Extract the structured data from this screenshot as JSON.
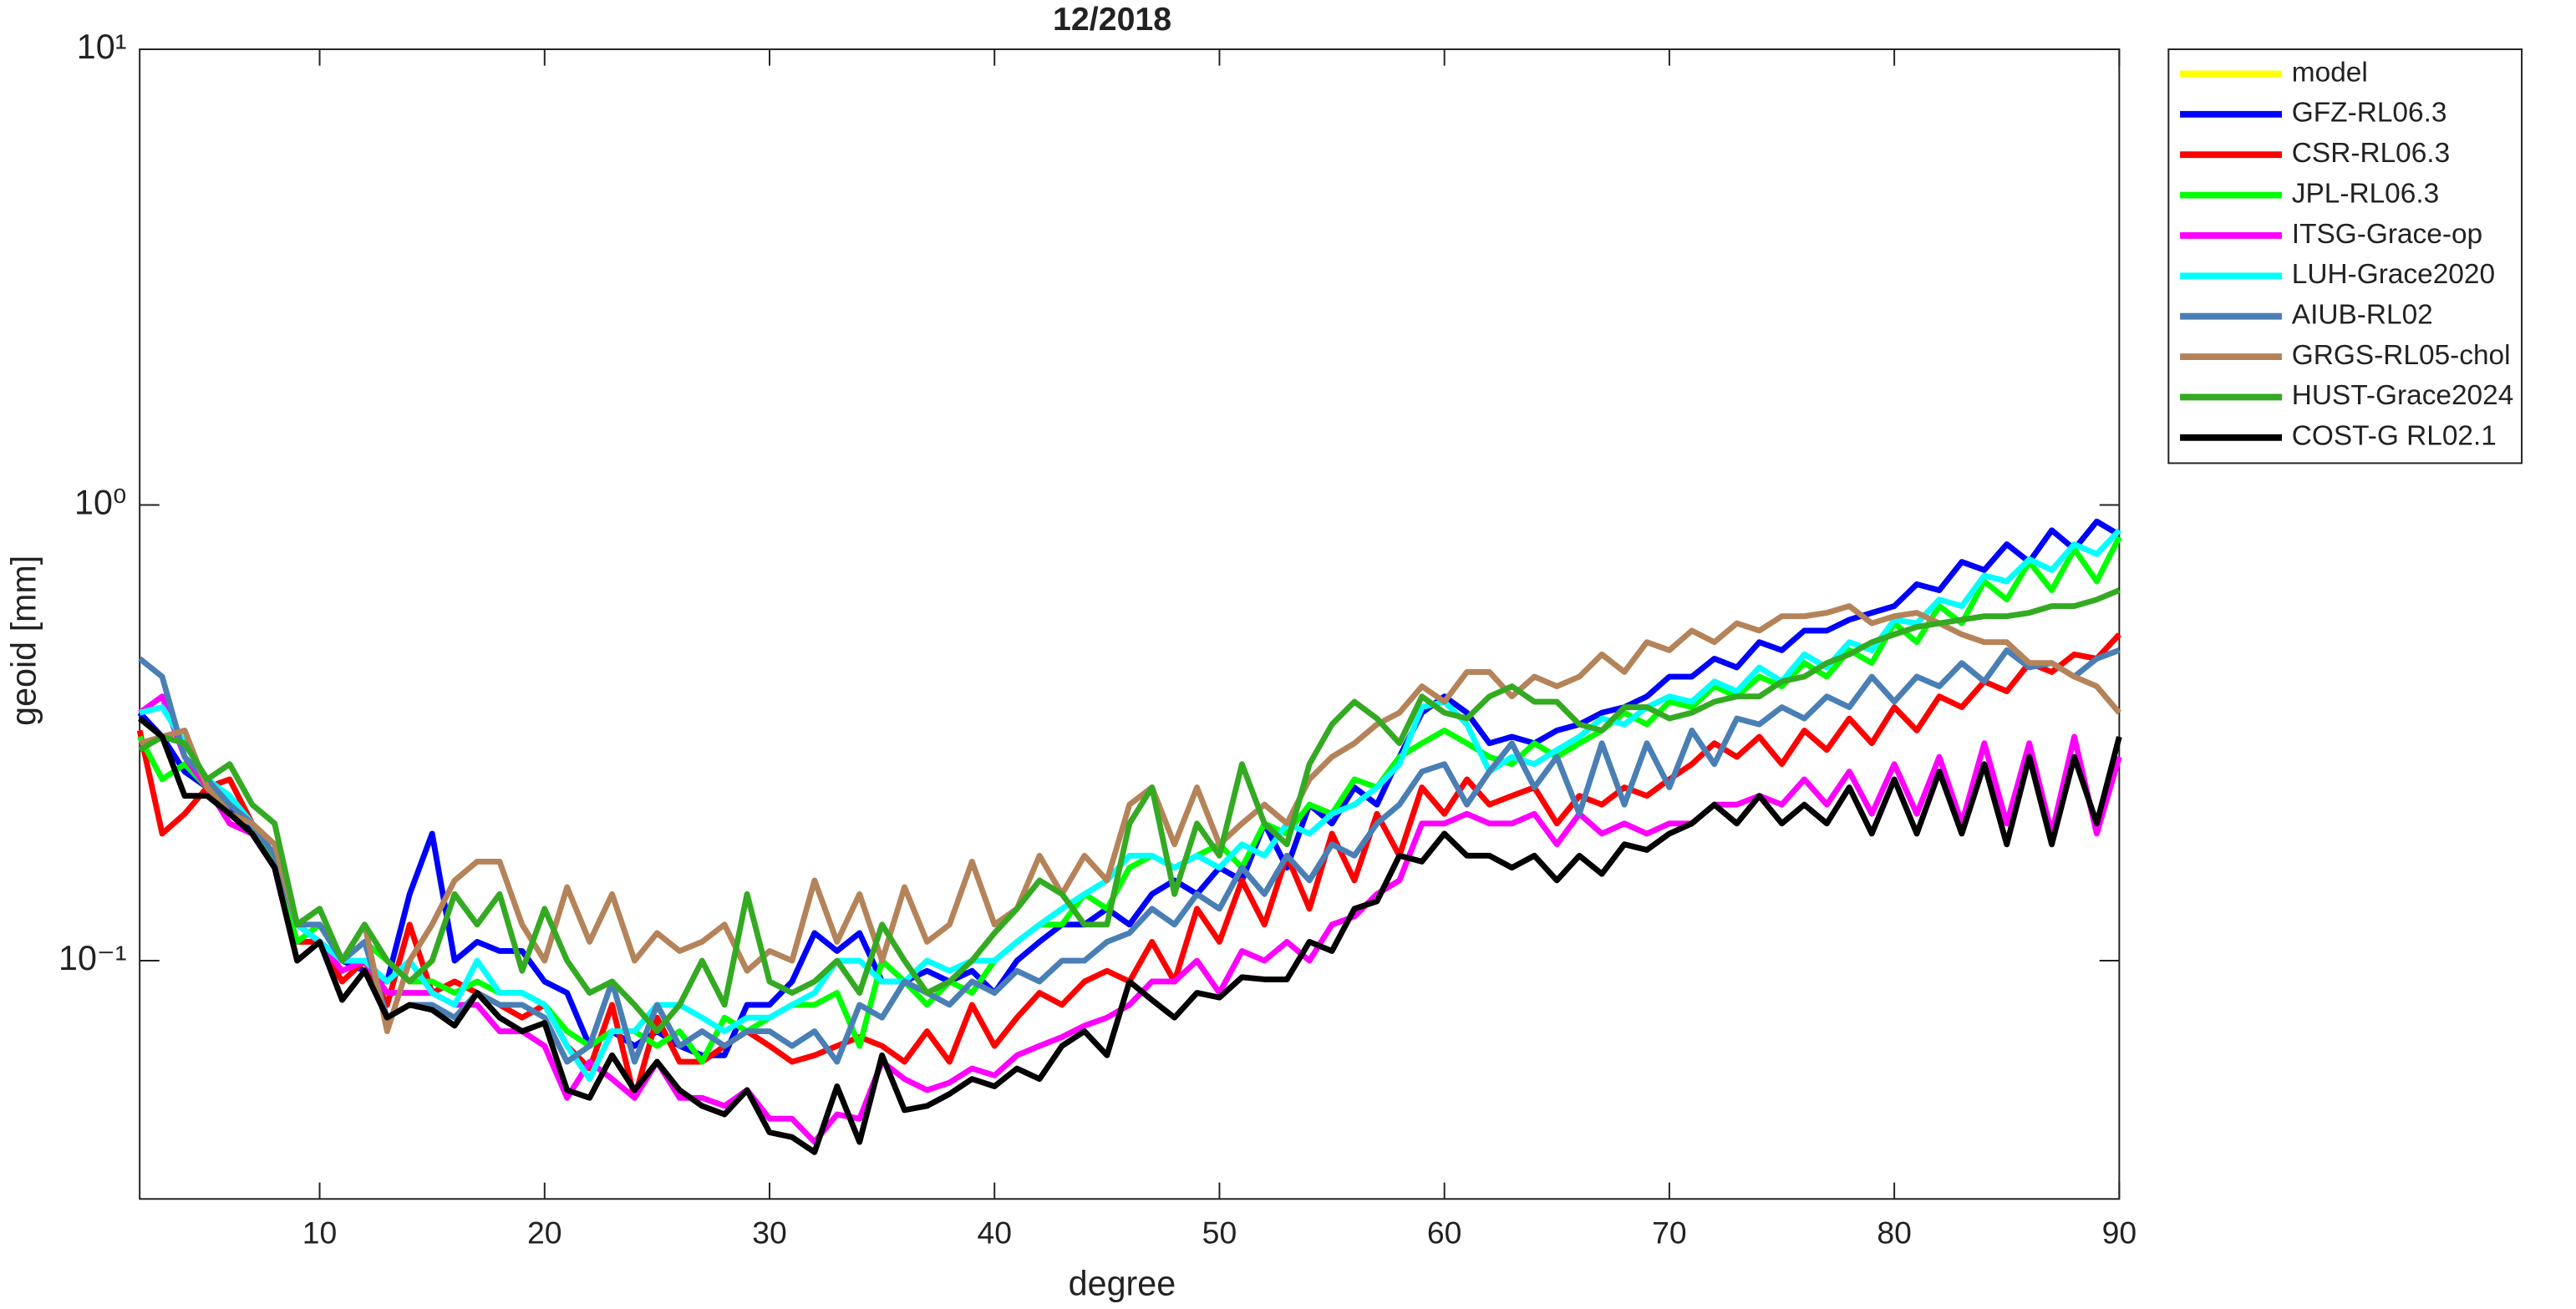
{
  "chart_data": {
    "type": "line",
    "title": "12/2018",
    "x_label": "degree",
    "y_label": "geoid [mm]",
    "yscale": "log",
    "xlim": [
      2,
      90
    ],
    "ylim": [
      0.03,
      10
    ],
    "xticks": [
      10,
      20,
      30,
      40,
      50,
      60,
      70,
      80,
      90
    ],
    "yticks": [
      {
        "value": 0.1,
        "label": "10⁻¹"
      },
      {
        "value": 1,
        "label": "10⁰"
      },
      {
        "value": 10,
        "label": "10¹"
      }
    ],
    "legend": "outside-upper-right",
    "x": [
      2,
      3,
      4,
      5,
      6,
      7,
      8,
      9,
      10,
      11,
      12,
      13,
      14,
      15,
      16,
      17,
      18,
      19,
      20,
      21,
      22,
      23,
      24,
      25,
      26,
      27,
      28,
      29,
      30,
      31,
      32,
      33,
      34,
      35,
      36,
      37,
      38,
      39,
      40,
      41,
      42,
      43,
      44,
      45,
      46,
      47,
      48,
      49,
      50,
      51,
      52,
      53,
      54,
      55,
      56,
      57,
      58,
      59,
      60,
      61,
      62,
      63,
      64,
      65,
      66,
      67,
      68,
      69,
      70,
      71,
      72,
      73,
      74,
      75,
      76,
      77,
      78,
      79,
      80,
      81,
      82,
      83,
      84,
      85,
      86,
      87,
      88,
      89,
      90
    ],
    "series": [
      {
        "name": "model",
        "color": "#ffff00",
        "values": [
          null,
          null,
          null,
          null,
          null,
          null,
          null,
          null,
          null,
          null,
          null,
          null,
          null,
          null,
          null,
          null,
          null,
          null,
          null,
          null,
          null,
          null,
          null,
          null,
          null,
          null,
          null,
          null,
          null,
          null,
          null,
          null,
          null,
          null,
          null,
          null,
          null,
          null,
          null,
          null,
          null,
          null,
          null,
          null,
          null,
          null,
          null,
          null,
          null,
          null,
          null,
          null,
          null,
          null,
          null,
          null,
          null,
          null,
          null,
          null,
          null,
          null,
          null,
          null,
          null,
          null,
          null,
          null,
          null,
          null,
          null,
          null,
          null,
          null,
          null,
          null,
          null,
          null,
          null,
          null,
          null,
          null,
          null,
          null,
          null,
          null,
          null,
          null,
          null
        ]
      },
      {
        "name": "GFZ-RL06.3",
        "color": "#0000ff",
        "values": [
          0.35,
          0.31,
          0.26,
          0.24,
          0.22,
          0.19,
          0.16,
          0.12,
          0.11,
          0.1,
          0.095,
          0.09,
          0.14,
          0.19,
          0.1,
          0.11,
          0.105,
          0.105,
          0.09,
          0.085,
          0.065,
          0.07,
          0.065,
          0.07,
          0.065,
          0.062,
          0.062,
          0.08,
          0.08,
          0.09,
          0.115,
          0.105,
          0.115,
          0.09,
          0.09,
          0.095,
          0.09,
          0.095,
          0.085,
          0.1,
          0.11,
          0.12,
          0.12,
          0.13,
          0.12,
          0.14,
          0.15,
          0.14,
          0.16,
          0.15,
          0.2,
          0.16,
          0.22,
          0.2,
          0.24,
          0.22,
          0.28,
          0.35,
          0.38,
          0.35,
          0.3,
          0.31,
          0.3,
          0.32,
          0.33,
          0.35,
          0.36,
          0.38,
          0.42,
          0.42,
          0.46,
          0.44,
          0.5,
          0.48,
          0.53,
          0.53,
          0.56,
          0.58,
          0.6,
          0.67,
          0.65,
          0.75,
          0.72,
          0.82,
          0.75,
          0.88,
          0.8,
          0.92,
          0.86
        ]
      },
      {
        "name": "CSR-RL06.3",
        "color": "#ff0000",
        "values": [
          0.32,
          0.19,
          0.21,
          0.24,
          0.25,
          0.2,
          0.16,
          0.11,
          0.11,
          0.09,
          0.1,
          0.08,
          0.12,
          0.085,
          0.09,
          0.085,
          0.08,
          0.075,
          0.08,
          0.065,
          0.058,
          0.08,
          0.05,
          0.075,
          0.06,
          0.06,
          0.065,
          0.07,
          0.065,
          0.06,
          0.062,
          0.065,
          0.068,
          0.065,
          0.06,
          0.07,
          0.06,
          0.08,
          0.065,
          0.075,
          0.085,
          0.08,
          0.09,
          0.095,
          0.09,
          0.11,
          0.09,
          0.13,
          0.11,
          0.15,
          0.12,
          0.17,
          0.13,
          0.19,
          0.15,
          0.21,
          0.17,
          0.24,
          0.21,
          0.25,
          0.22,
          0.23,
          0.24,
          0.2,
          0.23,
          0.22,
          0.24,
          0.23,
          0.25,
          0.27,
          0.3,
          0.28,
          0.31,
          0.27,
          0.32,
          0.29,
          0.34,
          0.3,
          0.36,
          0.32,
          0.38,
          0.36,
          0.41,
          0.39,
          0.45,
          0.43,
          0.47,
          0.46,
          0.52
        ]
      },
      {
        "name": "JPL-RL06.3",
        "color": "#00ff00",
        "values": [
          0.31,
          0.25,
          0.27,
          0.24,
          0.22,
          0.2,
          0.16,
          0.11,
          0.12,
          0.1,
          0.11,
          0.1,
          0.09,
          0.09,
          0.085,
          0.09,
          0.085,
          0.085,
          0.08,
          0.07,
          0.065,
          0.07,
          0.07,
          0.065,
          0.07,
          0.06,
          0.075,
          0.07,
          0.075,
          0.08,
          0.08,
          0.085,
          0.065,
          0.1,
          0.09,
          0.08,
          0.09,
          0.085,
          0.1,
          0.11,
          0.12,
          0.12,
          0.14,
          0.13,
          0.16,
          0.17,
          0.16,
          0.17,
          0.18,
          0.16,
          0.2,
          0.19,
          0.22,
          0.21,
          0.25,
          0.24,
          0.28,
          0.3,
          0.32,
          0.3,
          0.28,
          0.27,
          0.3,
          0.28,
          0.3,
          0.32,
          0.35,
          0.33,
          0.37,
          0.36,
          0.4,
          0.38,
          0.42,
          0.4,
          0.45,
          0.42,
          0.48,
          0.45,
          0.55,
          0.5,
          0.6,
          0.55,
          0.68,
          0.62,
          0.75,
          0.65,
          0.8,
          0.68,
          0.85
        ]
      },
      {
        "name": "ITSG-Grace-op",
        "color": "#ff00ff",
        "values": [
          0.35,
          0.38,
          0.28,
          0.24,
          0.2,
          0.19,
          0.16,
          0.1,
          0.11,
          0.095,
          0.1,
          0.085,
          0.085,
          0.085,
          0.08,
          0.08,
          0.07,
          0.07,
          0.065,
          0.05,
          0.06,
          0.055,
          0.05,
          0.06,
          0.05,
          0.05,
          0.048,
          0.052,
          0.045,
          0.045,
          0.04,
          0.046,
          0.045,
          0.06,
          0.055,
          0.052,
          0.054,
          0.058,
          0.056,
          0.062,
          0.065,
          0.068,
          0.072,
          0.075,
          0.08,
          0.09,
          0.09,
          0.1,
          0.085,
          0.105,
          0.1,
          0.11,
          0.1,
          0.12,
          0.125,
          0.14,
          0.15,
          0.2,
          0.2,
          0.21,
          0.2,
          0.2,
          0.21,
          0.18,
          0.21,
          0.19,
          0.2,
          0.19,
          0.2,
          0.2,
          0.22,
          0.22,
          0.23,
          0.22,
          0.25,
          0.22,
          0.26,
          0.21,
          0.27,
          0.21,
          0.28,
          0.2,
          0.3,
          0.2,
          0.3,
          0.19,
          0.31,
          0.19,
          0.28
        ]
      },
      {
        "name": "LUH-Grace2020",
        "color": "#00ffff",
        "values": [
          0.35,
          0.36,
          0.3,
          0.25,
          0.23,
          0.2,
          0.17,
          0.12,
          0.11,
          0.1,
          0.1,
          0.09,
          0.1,
          0.085,
          0.08,
          0.1,
          0.085,
          0.085,
          0.08,
          0.065,
          0.055,
          0.07,
          0.07,
          0.08,
          0.08,
          0.075,
          0.07,
          0.075,
          0.075,
          0.08,
          0.085,
          0.1,
          0.1,
          0.09,
          0.09,
          0.1,
          0.095,
          0.1,
          0.1,
          0.11,
          0.12,
          0.13,
          0.14,
          0.15,
          0.17,
          0.17,
          0.16,
          0.17,
          0.16,
          0.18,
          0.17,
          0.2,
          0.19,
          0.21,
          0.22,
          0.24,
          0.27,
          0.36,
          0.37,
          0.33,
          0.26,
          0.28,
          0.27,
          0.29,
          0.31,
          0.34,
          0.33,
          0.36,
          0.38,
          0.37,
          0.41,
          0.39,
          0.44,
          0.41,
          0.47,
          0.44,
          0.5,
          0.48,
          0.56,
          0.55,
          0.62,
          0.6,
          0.7,
          0.68,
          0.76,
          0.72,
          0.82,
          0.78,
          0.88
        ]
      },
      {
        "name": "AIUB-RL02",
        "color": "#4a7fb5",
        "values": [
          0.46,
          0.42,
          0.28,
          0.25,
          0.22,
          0.2,
          0.17,
          0.12,
          0.12,
          0.1,
          0.11,
          0.075,
          0.08,
          0.08,
          0.075,
          0.085,
          0.08,
          0.08,
          0.075,
          0.06,
          0.065,
          0.09,
          0.06,
          0.08,
          0.065,
          0.07,
          0.065,
          0.07,
          0.07,
          0.065,
          0.07,
          0.06,
          0.08,
          0.075,
          0.09,
          0.085,
          0.08,
          0.09,
          0.085,
          0.095,
          0.09,
          0.1,
          0.1,
          0.11,
          0.115,
          0.13,
          0.12,
          0.14,
          0.13,
          0.16,
          0.14,
          0.17,
          0.15,
          0.18,
          0.17,
          0.2,
          0.22,
          0.26,
          0.27,
          0.22,
          0.26,
          0.3,
          0.24,
          0.28,
          0.21,
          0.3,
          0.22,
          0.3,
          0.24,
          0.32,
          0.27,
          0.34,
          0.33,
          0.36,
          0.34,
          0.38,
          0.36,
          0.42,
          0.37,
          0.42,
          0.4,
          0.45,
          0.41,
          0.48,
          0.44,
          0.45,
          0.42,
          0.46,
          0.48
        ]
      },
      {
        "name": "GRGS-RL05-chol",
        "color": "#b5835a",
        "values": [
          0.3,
          0.31,
          0.32,
          0.24,
          0.21,
          0.2,
          0.18,
          0.12,
          0.13,
          0.1,
          0.12,
          0.07,
          0.1,
          0.12,
          0.15,
          0.165,
          0.165,
          0.12,
          0.1,
          0.145,
          0.11,
          0.14,
          0.1,
          0.115,
          0.105,
          0.11,
          0.12,
          0.095,
          0.105,
          0.1,
          0.15,
          0.11,
          0.14,
          0.1,
          0.145,
          0.11,
          0.12,
          0.165,
          0.12,
          0.13,
          0.17,
          0.14,
          0.17,
          0.15,
          0.22,
          0.24,
          0.18,
          0.24,
          0.18,
          0.2,
          0.22,
          0.2,
          0.25,
          0.28,
          0.3,
          0.33,
          0.35,
          0.4,
          0.37,
          0.43,
          0.43,
          0.38,
          0.42,
          0.4,
          0.42,
          0.47,
          0.43,
          0.5,
          0.48,
          0.53,
          0.5,
          0.55,
          0.53,
          0.57,
          0.57,
          0.58,
          0.6,
          0.55,
          0.57,
          0.58,
          0.55,
          0.52,
          0.5,
          0.5,
          0.45,
          0.45,
          0.42,
          0.4,
          0.35
        ]
      },
      {
        "name": "HUST-Grace2024",
        "color": "#33aa22",
        "values": [
          0.29,
          0.31,
          0.3,
          0.25,
          0.27,
          0.22,
          0.2,
          0.12,
          0.13,
          0.1,
          0.12,
          0.1,
          0.09,
          0.1,
          0.14,
          0.12,
          0.14,
          0.095,
          0.13,
          0.1,
          0.085,
          0.09,
          0.08,
          0.07,
          0.08,
          0.1,
          0.08,
          0.14,
          0.09,
          0.085,
          0.09,
          0.1,
          0.085,
          0.12,
          0.1,
          0.085,
          0.09,
          0.1,
          0.115,
          0.13,
          0.15,
          0.14,
          0.12,
          0.12,
          0.2,
          0.24,
          0.14,
          0.2,
          0.17,
          0.27,
          0.2,
          0.18,
          0.27,
          0.33,
          0.37,
          0.34,
          0.3,
          0.38,
          0.35,
          0.34,
          0.38,
          0.4,
          0.37,
          0.37,
          0.33,
          0.32,
          0.36,
          0.36,
          0.34,
          0.35,
          0.37,
          0.38,
          0.38,
          0.41,
          0.42,
          0.45,
          0.47,
          0.5,
          0.52,
          0.54,
          0.55,
          0.56,
          0.57,
          0.57,
          0.58,
          0.6,
          0.6,
          0.62,
          0.65
        ]
      },
      {
        "name": "COST-G RL02.1",
        "color": "#000000",
        "values": [
          0.34,
          0.31,
          0.23,
          0.23,
          0.21,
          0.19,
          0.16,
          0.1,
          0.11,
          0.082,
          0.095,
          0.075,
          0.08,
          0.078,
          0.072,
          0.085,
          0.075,
          0.07,
          0.073,
          0.052,
          0.05,
          0.062,
          0.052,
          0.06,
          0.052,
          0.048,
          0.046,
          0.052,
          0.042,
          0.041,
          0.038,
          0.053,
          0.04,
          0.062,
          0.047,
          0.048,
          0.051,
          0.055,
          0.053,
          0.058,
          0.055,
          0.065,
          0.07,
          0.062,
          0.09,
          0.082,
          0.075,
          0.085,
          0.083,
          0.092,
          0.091,
          0.091,
          0.11,
          0.105,
          0.13,
          0.135,
          0.17,
          0.165,
          0.19,
          0.17,
          0.17,
          0.16,
          0.17,
          0.15,
          0.17,
          0.155,
          0.18,
          0.175,
          0.19,
          0.2,
          0.22,
          0.2,
          0.23,
          0.2,
          0.22,
          0.2,
          0.24,
          0.19,
          0.25,
          0.19,
          0.26,
          0.19,
          0.27,
          0.18,
          0.28,
          0.18,
          0.28,
          0.2,
          0.31
        ]
      }
    ]
  }
}
